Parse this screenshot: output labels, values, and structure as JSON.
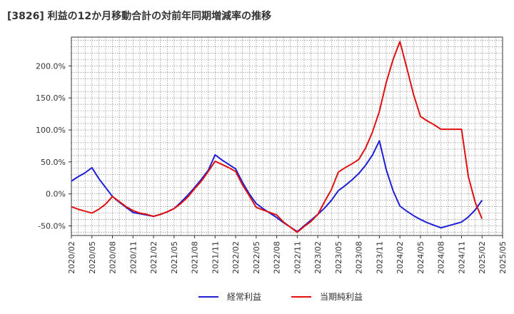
{
  "chart_data": {
    "type": "line",
    "title": "[3826]  利益の12か月移動合計の対前年同期増減率の推移",
    "xlabel": "",
    "ylabel": "",
    "ylim": [
      -65,
      245
    ],
    "yticks": [
      -50,
      0,
      50,
      100,
      150,
      200
    ],
    "ytick_labels": [
      "-50.0%",
      "0.0%",
      "50.0%",
      "100.0%",
      "150.0%",
      "200.0%"
    ],
    "x": [
      "2020/02",
      "2020/03",
      "2020/04",
      "2020/05",
      "2020/06",
      "2020/07",
      "2020/08",
      "2020/09",
      "2020/10",
      "2020/11",
      "2020/12",
      "2021/01",
      "2021/02",
      "2021/03",
      "2021/04",
      "2021/05",
      "2021/06",
      "2021/07",
      "2021/08",
      "2021/09",
      "2021/10",
      "2021/11",
      "2021/12",
      "2022/01",
      "2022/02",
      "2022/03",
      "2022/04",
      "2022/05",
      "2022/06",
      "2022/07",
      "2022/08",
      "2022/09",
      "2022/10",
      "2022/11",
      "2022/12",
      "2023/01",
      "2023/02",
      "2023/03",
      "2023/04",
      "2023/05",
      "2023/06",
      "2023/07",
      "2023/08",
      "2023/09",
      "2023/10",
      "2023/11",
      "2023/12",
      "2024/01",
      "2024/02",
      "2024/03",
      "2024/04",
      "2024/05",
      "2024/06",
      "2024/07",
      "2024/08",
      "2024/09",
      "2024/10",
      "2024/11",
      "2024/12",
      "2025/01",
      "2025/02",
      "2025/03",
      "2025/04",
      "2025/05"
    ],
    "x_tick_labels": [
      "2020/02",
      "2020/05",
      "2020/08",
      "2020/11",
      "2021/02",
      "2021/05",
      "2021/08",
      "2021/11",
      "2022/02",
      "2022/05",
      "2022/08",
      "2022/11",
      "2023/02",
      "2023/05",
      "2023/08",
      "2023/11",
      "2024/02",
      "2024/05",
      "2024/08",
      "2024/11",
      "2025/02",
      "2025/05"
    ],
    "series": [
      {
        "name": "経常利益",
        "color": "#1f1fd6",
        "values": [
          20,
          27,
          33,
          41,
          24,
          10,
          -4,
          -13,
          -21,
          -29,
          -31,
          -33,
          -35,
          -32,
          -28,
          -23,
          -13,
          -2,
          10,
          23,
          37,
          61,
          53,
          46,
          39,
          18,
          0,
          -15,
          -23,
          -30,
          -37,
          -45,
          -52,
          -59,
          -50,
          -41,
          -32,
          -22,
          -10,
          5,
          13,
          22,
          32,
          45,
          61,
          83,
          38,
          5,
          -19,
          -27,
          -34,
          -40,
          -45,
          -49,
          -53,
          -50,
          -47,
          -44,
          -36,
          -25,
          -10,
          null,
          null,
          null
        ]
      },
      {
        "name": "当期純利益",
        "color": "#e01010",
        "values": [
          -20,
          -24,
          -27,
          -30,
          -24,
          -16,
          -4,
          -12,
          -20,
          -26,
          -30,
          -32,
          -35,
          -32,
          -28,
          -23,
          -15,
          -5,
          8,
          20,
          35,
          51,
          46,
          41,
          35,
          14,
          -3,
          -21,
          -25,
          -29,
          -33,
          -44,
          -52,
          -60,
          -51,
          -43,
          -32,
          -12,
          7,
          34,
          41,
          47,
          54,
          72,
          97,
          129,
          174,
          210,
          238,
          197,
          155,
          121,
          114,
          108,
          101,
          101,
          101,
          101,
          27,
          -13,
          -39,
          null,
          null,
          null
        ]
      }
    ],
    "legend": "bottom-center",
    "grid": true
  }
}
